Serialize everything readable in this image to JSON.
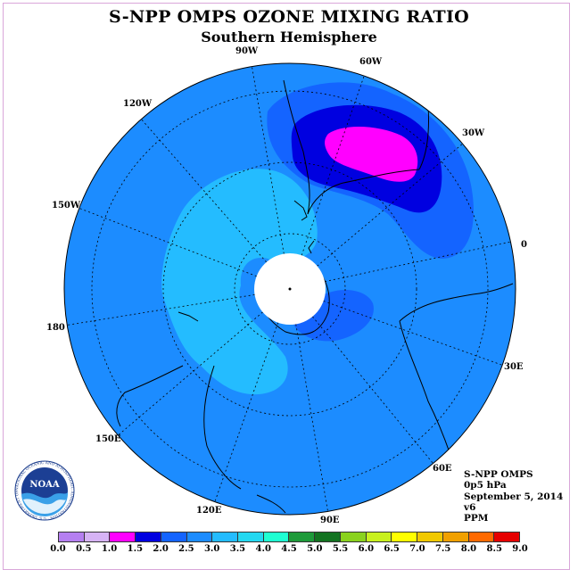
{
  "title": "S-NPP OMPS OZONE MIXING RATIO",
  "subtitle": "Southern Hemisphere",
  "map": {
    "projection": "polar-stereographic",
    "hemisphere": "south",
    "longitude_labels": [
      "90W",
      "60W",
      "30W",
      "0",
      "30E",
      "60E",
      "90E",
      "120E",
      "150E",
      "180",
      "150W",
      "120W"
    ],
    "colors": {
      "ocean_field": "#1c8cff",
      "lower_region": "#24bcff",
      "higher_region": "#1464ff",
      "high_region": "#0000e0",
      "max_region": "#ff00ff",
      "pole_missing": "#ffffff"
    }
  },
  "logo": {
    "name": "noaa-logo",
    "text": "NOAA",
    "ring_text": "NATIONAL OCEANIC AND ATMOSPHERIC ADMINISTRATION · U.S. DEPARTMENT OF COMMERCE"
  },
  "info": {
    "instrument": "S-NPP OMPS",
    "level": "0p5 hPa",
    "date": "September 5, 2014",
    "version": "v6",
    "units": "PPM"
  },
  "colorbar": {
    "labels": [
      "0.0",
      "0.5",
      "1.0",
      "1.5",
      "2.0",
      "2.5",
      "3.0",
      "3.5",
      "4.0",
      "4.5",
      "5.0",
      "5.5",
      "6.0",
      "6.5",
      "7.0",
      "7.5",
      "8.0",
      "8.5",
      "9.0"
    ],
    "colors": [
      "#b57ff0",
      "#d6b3f5",
      "#ff00ff",
      "#0000e0",
      "#1464ff",
      "#1c8cff",
      "#24bcff",
      "#24d8f0",
      "#1fffd2",
      "#1e9a3a",
      "#137321",
      "#8ad21e",
      "#c8f01e",
      "#ffff00",
      "#f0c800",
      "#f0a000",
      "#ff6a00",
      "#e60000",
      "#8c5a3c"
    ]
  }
}
